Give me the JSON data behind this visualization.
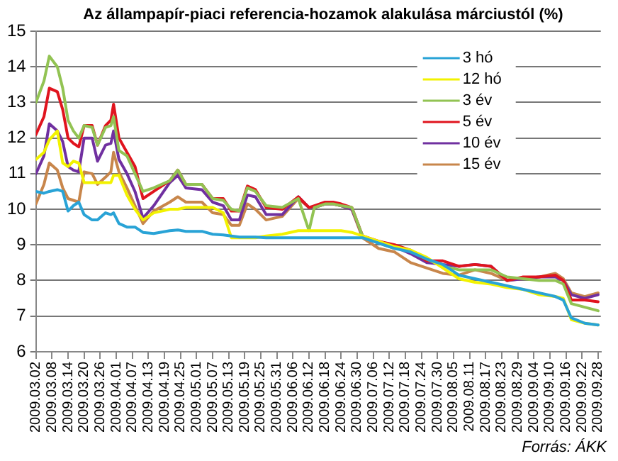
{
  "chart_data": {
    "type": "line",
    "title": "Az állampapír-piaci referencia-hozamok alakulása márciustól (%)",
    "x": [
      "2009-03-02",
      "2009-03-05",
      "2009-03-07",
      "2009-03-10",
      "2009-03-12",
      "2009-03-14",
      "2009-03-16",
      "2009-03-18",
      "2009-03-20",
      "2009-03-23",
      "2009-03-25",
      "2009-03-28",
      "2009-03-30",
      "2009-03-31",
      "2009-04-02",
      "2009-04-05",
      "2009-04-08",
      "2009-04-11",
      "2009-04-15",
      "2009-04-21",
      "2009-04-24",
      "2009-04-27",
      "2009-05-03",
      "2009-05-07",
      "2009-05-11",
      "2009-05-14",
      "2009-05-17",
      "2009-05-20",
      "2009-05-23",
      "2009-05-27",
      "2009-06-02",
      "2009-06-08",
      "2009-06-12",
      "2009-06-14",
      "2009-06-18",
      "2009-06-21",
      "2009-06-24",
      "2009-06-28",
      "2009-07-02",
      "2009-07-08",
      "2009-07-14",
      "2009-07-20",
      "2009-07-26",
      "2009-08-01",
      "2009-08-07",
      "2009-08-13",
      "2009-08-19",
      "2009-08-25",
      "2009-08-31",
      "2009-09-06",
      "2009-09-12",
      "2009-09-15",
      "2009-09-18",
      "2009-09-23",
      "2009-09-28"
    ],
    "series": [
      {
        "name": "3 hó",
        "color": "#29a3d6",
        "values": [
          10.5,
          10.45,
          10.5,
          10.55,
          10.5,
          9.95,
          10.1,
          10.2,
          9.85,
          9.7,
          9.7,
          9.9,
          9.85,
          9.9,
          9.6,
          9.5,
          9.5,
          9.35,
          9.32,
          9.4,
          9.42,
          9.38,
          9.38,
          9.3,
          9.28,
          9.25,
          9.22,
          9.22,
          9.22,
          9.2,
          9.2,
          9.2,
          9.2,
          9.2,
          9.2,
          9.2,
          9.2,
          9.2,
          9.2,
          9.05,
          8.9,
          8.8,
          8.6,
          8.45,
          8.15,
          8.05,
          7.95,
          7.85,
          7.75,
          7.65,
          7.55,
          7.45,
          6.95,
          6.8,
          6.75
        ]
      },
      {
        "name": "12 hó",
        "color": "#f2f200",
        "values": [
          11.4,
          11.6,
          11.95,
          12.2,
          11.3,
          11.2,
          11.35,
          11.3,
          10.75,
          10.75,
          10.75,
          10.75,
          10.75,
          10.95,
          10.95,
          10.4,
          10.0,
          9.7,
          9.9,
          10.0,
          10.0,
          10.05,
          10.05,
          10.05,
          9.9,
          9.2,
          9.2,
          9.2,
          9.2,
          9.25,
          9.3,
          9.4,
          9.4,
          9.4,
          9.4,
          9.4,
          9.4,
          9.35,
          9.25,
          9.1,
          8.95,
          8.85,
          8.65,
          8.35,
          8.05,
          7.95,
          7.9,
          7.8,
          7.75,
          7.6,
          7.55,
          7.5,
          6.9,
          6.8,
          6.75
        ]
      },
      {
        "name": "3 év",
        "color": "#92c353",
        "values": [
          13.0,
          13.6,
          14.3,
          14.0,
          13.4,
          12.5,
          12.2,
          12.0,
          12.35,
          12.3,
          11.8,
          12.3,
          12.35,
          12.6,
          11.65,
          11.5,
          11.0,
          10.5,
          10.6,
          10.8,
          11.1,
          10.7,
          10.7,
          10.3,
          10.25,
          10.0,
          9.95,
          10.6,
          10.5,
          10.1,
          10.05,
          10.3,
          9.4,
          10.05,
          10.15,
          10.15,
          10.1,
          10.05,
          9.25,
          9.05,
          8.9,
          8.85,
          8.6,
          8.4,
          8.3,
          8.3,
          8.3,
          8.1,
          8.05,
          8.0,
          8.0,
          7.9,
          7.35,
          7.25,
          7.15
        ]
      },
      {
        "name": "5 év",
        "color": "#e0141e",
        "values": [
          12.1,
          12.6,
          13.4,
          13.3,
          12.8,
          12.0,
          11.85,
          11.75,
          12.35,
          12.35,
          11.8,
          12.35,
          12.5,
          12.95,
          12.0,
          11.6,
          11.2,
          10.3,
          10.5,
          10.8,
          11.1,
          10.7,
          10.7,
          10.3,
          10.3,
          9.95,
          9.95,
          10.65,
          10.55,
          10.05,
          10.0,
          10.35,
          10.05,
          10.1,
          10.2,
          10.2,
          10.15,
          10.05,
          9.25,
          9.1,
          9.0,
          8.85,
          8.55,
          8.55,
          8.4,
          8.45,
          8.4,
          8.0,
          8.1,
          8.1,
          8.15,
          8.0,
          7.45,
          7.45,
          7.4
        ]
      },
      {
        "name": "10 év",
        "color": "#7030a0",
        "values": [
          11.0,
          11.5,
          12.4,
          12.2,
          11.9,
          11.2,
          11.1,
          11.05,
          12.0,
          12.0,
          11.35,
          11.8,
          11.85,
          12.2,
          11.4,
          11.0,
          10.5,
          9.75,
          10.1,
          10.75,
          10.95,
          10.6,
          10.55,
          10.2,
          10.1,
          9.7,
          9.7,
          10.4,
          10.35,
          9.85,
          9.85,
          10.35,
          10.05,
          10.05,
          10.15,
          10.15,
          10.1,
          10.0,
          9.25,
          9.05,
          8.95,
          8.75,
          8.5,
          8.45,
          8.4,
          8.45,
          8.4,
          8.0,
          8.05,
          8.1,
          8.1,
          8.0,
          7.6,
          7.5,
          7.6
        ]
      },
      {
        "name": "15 év",
        "color": "#c8864b",
        "values": [
          10.15,
          10.7,
          11.3,
          11.1,
          10.6,
          10.3,
          10.25,
          10.2,
          11.05,
          11.0,
          10.7,
          10.9,
          11.05,
          11.6,
          11.05,
          10.6,
          10.1,
          9.6,
          9.95,
          10.2,
          10.35,
          10.2,
          10.2,
          9.9,
          9.85,
          9.55,
          9.55,
          10.15,
          10.0,
          9.7,
          9.8,
          10.3,
          10.05,
          10.05,
          10.15,
          10.15,
          10.1,
          10.0,
          9.2,
          8.9,
          8.8,
          8.5,
          8.35,
          8.2,
          8.15,
          8.3,
          8.2,
          8.0,
          8.05,
          8.1,
          8.2,
          8.05,
          7.65,
          7.55,
          7.65
        ]
      }
    ],
    "xlim": [
      "2009-03-02",
      "2009-09-29"
    ],
    "xticks": [
      {
        "value": "2009-03-02",
        "label": "2009.03.02"
      },
      {
        "value": "2009-03-08",
        "label": "2009.03.08"
      },
      {
        "value": "2009-03-14",
        "label": "2009.03.14"
      },
      {
        "value": "2009-03-20",
        "label": "2009.03.20"
      },
      {
        "value": "2009-03-26",
        "label": "2009.03.26"
      },
      {
        "value": "2009-04-01",
        "label": "2009.04.01"
      },
      {
        "value": "2009-04-07",
        "label": "2009.04.07"
      },
      {
        "value": "2009-04-13",
        "label": "2009.04.13"
      },
      {
        "value": "2009-04-19",
        "label": "2009.04.19"
      },
      {
        "value": "2009-04-25",
        "label": "2009.04.25"
      },
      {
        "value": "2009-05-01",
        "label": "2009.05.01"
      },
      {
        "value": "2009-05-07",
        "label": "2009.05.07"
      },
      {
        "value": "2009-05-13",
        "label": "2009.05.13"
      },
      {
        "value": "2009-05-19",
        "label": "2009.05.19"
      },
      {
        "value": "2009-05-25",
        "label": "2009.05.25"
      },
      {
        "value": "2009-05-31",
        "label": "2009.05.31"
      },
      {
        "value": "2009-06-06",
        "label": "2009.06.06"
      },
      {
        "value": "2009-06-12",
        "label": "2009.06.12"
      },
      {
        "value": "2009-06-18",
        "label": "2009.06.18"
      },
      {
        "value": "2009-06-24",
        "label": "2009.06.24"
      },
      {
        "value": "2009-06-30",
        "label": "2009.06.30"
      },
      {
        "value": "2009-07-06",
        "label": "2009.07.06"
      },
      {
        "value": "2009-07-12",
        "label": "2009.07.12"
      },
      {
        "value": "2009-07-18",
        "label": "2009.07.18"
      },
      {
        "value": "2009-07-24",
        "label": "2009.07.24"
      },
      {
        "value": "2009-07-30",
        "label": "2009.07.30"
      },
      {
        "value": "2009-08-05",
        "label": "2009.08.05"
      },
      {
        "value": "2009-08-11",
        "label": "2009.08.11"
      },
      {
        "value": "2009-08-17",
        "label": "2009.08.17"
      },
      {
        "value": "2009-08-23",
        "label": "2009.08.23"
      },
      {
        "value": "2009-08-29",
        "label": "2009.08.29"
      },
      {
        "value": "2009-09-04",
        "label": "2009.09.04"
      },
      {
        "value": "2009-09-10",
        "label": "2009.09.10"
      },
      {
        "value": "2009-09-16",
        "label": "2009.09.16"
      },
      {
        "value": "2009-09-22",
        "label": "2009.09.22"
      },
      {
        "value": "2009-09-28",
        "label": "2009.09.28"
      }
    ],
    "ylim": [
      6,
      15
    ],
    "yticks": [
      6,
      7,
      8,
      9,
      10,
      11,
      12,
      13,
      14,
      15
    ],
    "grid": "y",
    "legend": "top right",
    "marker": "none",
    "line_style": "solid",
    "annotations": [
      "Forrás: ÁKK"
    ]
  }
}
